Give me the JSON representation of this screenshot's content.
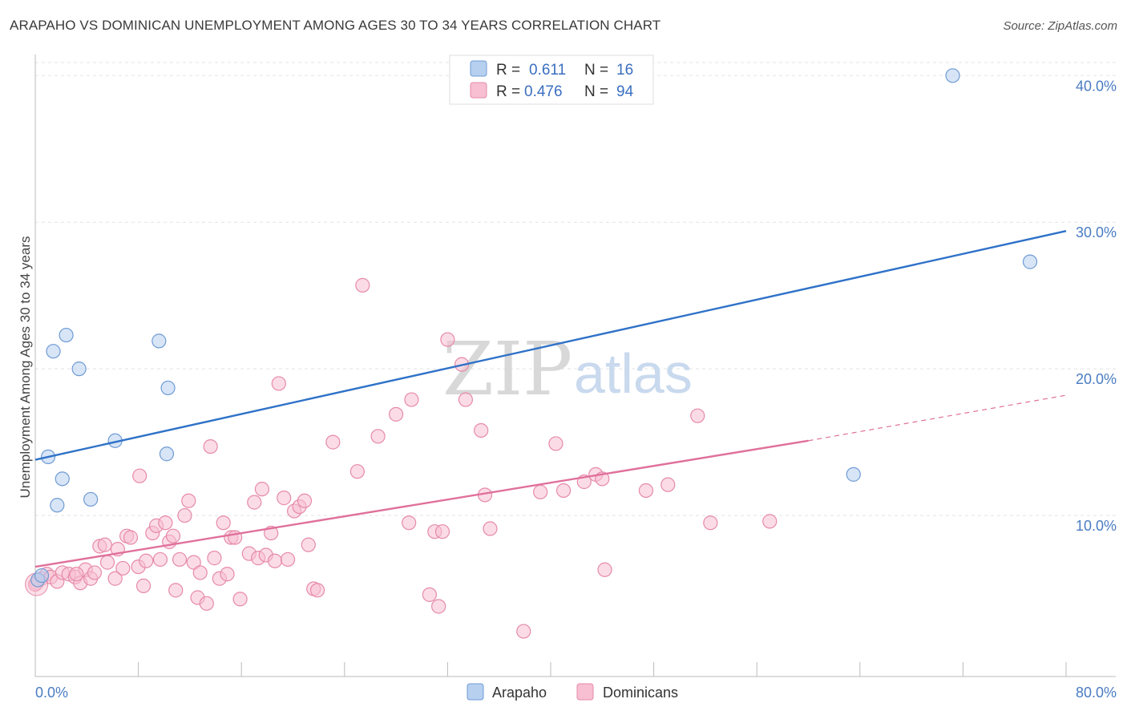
{
  "title": "ARAPAHO VS DOMINICAN UNEMPLOYMENT AMONG AGES 30 TO 34 YEARS CORRELATION CHART",
  "source": "Source: ZipAtlas.com",
  "watermark": {
    "zip": "ZIP",
    "atlas": "atlas"
  },
  "legend": {
    "rows": [
      {
        "r_label": "R =",
        "r_value": "0.611",
        "n_label": "N =",
        "n_value": "16"
      },
      {
        "r_label": "R =",
        "r_value": "0.476",
        "n_label": "N =",
        "n_value": "94"
      }
    ]
  },
  "colors": {
    "arapaho_fill": "#b7d0f0",
    "arapaho_stroke": "#6f9bd4",
    "arapaho_line": "#2f72c8",
    "dominican_fill": "#f7bfd1",
    "dominican_stroke": "#e68aa8",
    "dominican_line": "#e0709a"
  },
  "chart_data": {
    "type": "scatter",
    "xlabel": "",
    "ylabel": "Unemployment Among Ages 30 to 34 years",
    "xlim": [
      0,
      80
    ],
    "ylim": [
      0,
      41
    ],
    "x_tick_labels": [
      "0.0%",
      "80.0%"
    ],
    "y_ticks": [
      10,
      20,
      30,
      40
    ],
    "y_tick_labels": [
      "10.0%",
      "20.0%",
      "30.0%",
      "40.0%"
    ],
    "grid": true,
    "legend_position": "top-center",
    "series": [
      {
        "name": "Arapaho",
        "points": [
          [
            0.2,
            5.6
          ],
          [
            0.5,
            5.9
          ],
          [
            1.0,
            14.0
          ],
          [
            1.4,
            21.2
          ],
          [
            1.7,
            10.7
          ],
          [
            2.1,
            12.5
          ],
          [
            2.4,
            22.3
          ],
          [
            3.4,
            20.0
          ],
          [
            4.3,
            11.1
          ],
          [
            6.2,
            15.1
          ],
          [
            9.6,
            21.9
          ],
          [
            10.2,
            14.2
          ],
          [
            10.3,
            18.7
          ],
          [
            63.5,
            12.8
          ],
          [
            71.2,
            40.0
          ],
          [
            77.2,
            27.3
          ]
        ],
        "trend": {
          "x0": 0,
          "y0": 13.8,
          "x1": 80,
          "y1": 29.4
        }
      },
      {
        "name": "Dominicans",
        "points": [
          [
            0.1,
            5.4
          ],
          [
            0.5,
            5.7
          ],
          [
            0.9,
            6.0
          ],
          [
            1.2,
            5.8
          ],
          [
            1.7,
            5.5
          ],
          [
            2.1,
            6.1
          ],
          [
            2.6,
            6.0
          ],
          [
            3.1,
            5.8
          ],
          [
            3.5,
            5.4
          ],
          [
            3.9,
            6.3
          ],
          [
            4.3,
            5.7
          ],
          [
            4.6,
            6.1
          ],
          [
            5.0,
            7.9
          ],
          [
            5.4,
            8.0
          ],
          [
            5.6,
            6.8
          ],
          [
            6.2,
            5.7
          ],
          [
            6.4,
            7.7
          ],
          [
            6.8,
            6.4
          ],
          [
            7.1,
            8.6
          ],
          [
            7.4,
            8.5
          ],
          [
            8.0,
            6.5
          ],
          [
            8.1,
            12.7
          ],
          [
            8.4,
            5.2
          ],
          [
            8.6,
            6.9
          ],
          [
            9.1,
            8.8
          ],
          [
            9.4,
            9.3
          ],
          [
            9.7,
            7.0
          ],
          [
            10.1,
            9.5
          ],
          [
            10.4,
            8.2
          ],
          [
            10.7,
            8.6
          ],
          [
            10.9,
            4.9
          ],
          [
            11.2,
            7.0
          ],
          [
            11.6,
            10.0
          ],
          [
            11.9,
            11.0
          ],
          [
            12.3,
            6.8
          ],
          [
            12.6,
            4.4
          ],
          [
            12.8,
            6.1
          ],
          [
            13.3,
            4.0
          ],
          [
            13.6,
            14.7
          ],
          [
            13.9,
            7.1
          ],
          [
            14.3,
            5.7
          ],
          [
            14.6,
            9.5
          ],
          [
            14.9,
            6.0
          ],
          [
            15.2,
            8.5
          ],
          [
            15.5,
            8.5
          ],
          [
            15.9,
            4.3
          ],
          [
            16.6,
            7.4
          ],
          [
            17.0,
            10.9
          ],
          [
            17.3,
            7.1
          ],
          [
            17.6,
            11.8
          ],
          [
            17.9,
            7.3
          ],
          [
            18.3,
            8.8
          ],
          [
            18.6,
            6.9
          ],
          [
            18.9,
            19.0
          ],
          [
            19.3,
            11.2
          ],
          [
            19.6,
            7.0
          ],
          [
            20.1,
            10.3
          ],
          [
            20.5,
            10.6
          ],
          [
            20.9,
            11.0
          ],
          [
            21.2,
            8.0
          ],
          [
            21.6,
            5.0
          ],
          [
            21.9,
            4.9
          ],
          [
            23.1,
            15.0
          ],
          [
            25.0,
            13.0
          ],
          [
            25.4,
            25.7
          ],
          [
            26.6,
            15.4
          ],
          [
            28.0,
            16.9
          ],
          [
            29.0,
            9.5
          ],
          [
            29.2,
            17.9
          ],
          [
            30.6,
            4.6
          ],
          [
            31.0,
            8.9
          ],
          [
            31.3,
            3.8
          ],
          [
            31.6,
            8.9
          ],
          [
            32.0,
            22.0
          ],
          [
            33.1,
            20.3
          ],
          [
            33.4,
            17.9
          ],
          [
            34.6,
            15.8
          ],
          [
            34.9,
            11.4
          ],
          [
            35.3,
            9.1
          ],
          [
            37.9,
            2.1
          ],
          [
            39.2,
            11.6
          ],
          [
            40.4,
            14.9
          ],
          [
            41.0,
            11.7
          ],
          [
            42.6,
            12.3
          ],
          [
            43.5,
            12.8
          ],
          [
            44.0,
            12.5
          ],
          [
            44.2,
            6.3
          ],
          [
            47.4,
            11.7
          ],
          [
            49.1,
            12.1
          ],
          [
            51.4,
            16.8
          ],
          [
            52.4,
            9.5
          ],
          [
            57.0,
            9.6
          ],
          [
            0.0,
            5.3
          ],
          [
            3.2,
            6.0
          ]
        ],
        "trend": {
          "x0": 0,
          "y0": 6.5,
          "x1": 60,
          "y1": 15.1
        },
        "trend_dashed": {
          "x0": 60,
          "y0": 15.1,
          "x1": 80,
          "y1": 18.2
        }
      }
    ]
  }
}
